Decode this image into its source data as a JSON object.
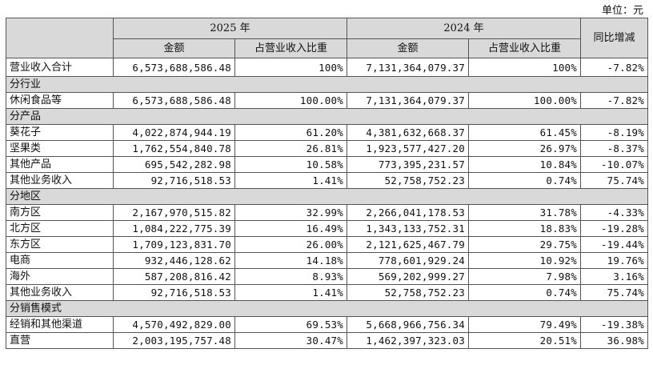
{
  "unit_label": "单位：元",
  "header": {
    "year_2025": "2025 年",
    "year_2024": "2024 年",
    "amount": "金额",
    "ratio": "占营业收入比重",
    "yoy": "同比增减"
  },
  "total": {
    "label": "营业收入合计",
    "v2025": "6,573,688,586.48",
    "r2025": "100%",
    "v2024": "7,131,364,079.37",
    "r2024": "100%",
    "yoy": "-7.82%"
  },
  "sections": [
    {
      "title": "分行业",
      "rows": [
        {
          "label": "休闲食品等",
          "v2025": "6,573,688,586.48",
          "r2025": "100.00%",
          "v2024": "7,131,364,079.37",
          "r2024": "100.00%",
          "yoy": "-7.82%"
        }
      ]
    },
    {
      "title": "分产品",
      "rows": [
        {
          "label": "葵花子",
          "v2025": "4,022,874,944.19",
          "r2025": "61.20%",
          "v2024": "4,381,632,668.37",
          "r2024": "61.45%",
          "yoy": "-8.19%"
        },
        {
          "label": "坚果类",
          "v2025": "1,762,554,840.78",
          "r2025": "26.81%",
          "v2024": "1,923,577,427.20",
          "r2024": "26.97%",
          "yoy": "-8.37%"
        },
        {
          "label": "其他产品",
          "v2025": "695,542,282.98",
          "r2025": "10.58%",
          "v2024": "773,395,231.57",
          "r2024": "10.84%",
          "yoy": "-10.07%"
        },
        {
          "label": "其他业务收入",
          "v2025": "92,716,518.53",
          "r2025": "1.41%",
          "v2024": "52,758,752.23",
          "r2024": "0.74%",
          "yoy": "75.74%"
        }
      ]
    },
    {
      "title": "分地区",
      "rows": [
        {
          "label": "南方区",
          "v2025": "2,167,970,515.82",
          "r2025": "32.99%",
          "v2024": "2,266,041,178.53",
          "r2024": "31.78%",
          "yoy": "-4.33%"
        },
        {
          "label": "北方区",
          "v2025": "1,084,222,775.39",
          "r2025": "16.49%",
          "v2024": "1,343,133,752.31",
          "r2024": "18.83%",
          "yoy": "-19.28%"
        },
        {
          "label": "东方区",
          "v2025": "1,709,123,831.70",
          "r2025": "26.00%",
          "v2024": "2,121,625,467.79",
          "r2024": "29.75%",
          "yoy": "-19.44%"
        },
        {
          "label": "电商",
          "v2025": "932,446,128.62",
          "r2025": "14.18%",
          "v2024": "778,601,929.24",
          "r2024": "10.92%",
          "yoy": "19.76%"
        },
        {
          "label": "海外",
          "v2025": "587,208,816.42",
          "r2025": "8.93%",
          "v2024": "569,202,999.27",
          "r2024": "7.98%",
          "yoy": "3.16%"
        },
        {
          "label": "其他业务收入",
          "v2025": "92,716,518.53",
          "r2025": "1.41%",
          "v2024": "52,758,752.23",
          "r2024": "0.74%",
          "yoy": "75.74%"
        }
      ]
    },
    {
      "title": "分销售模式",
      "rows": [
        {
          "label": "经销和其他渠道",
          "v2025": "4,570,492,829.00",
          "r2025": "69.53%",
          "v2024": "5,668,966,756.34",
          "r2024": "79.49%",
          "yoy": "-19.38%"
        },
        {
          "label": "直营",
          "v2025": "2,003,195,757.48",
          "r2025": "30.47%",
          "v2024": "1,462,397,323.03",
          "r2024": "20.51%",
          "yoy": "36.98%"
        }
      ]
    }
  ]
}
